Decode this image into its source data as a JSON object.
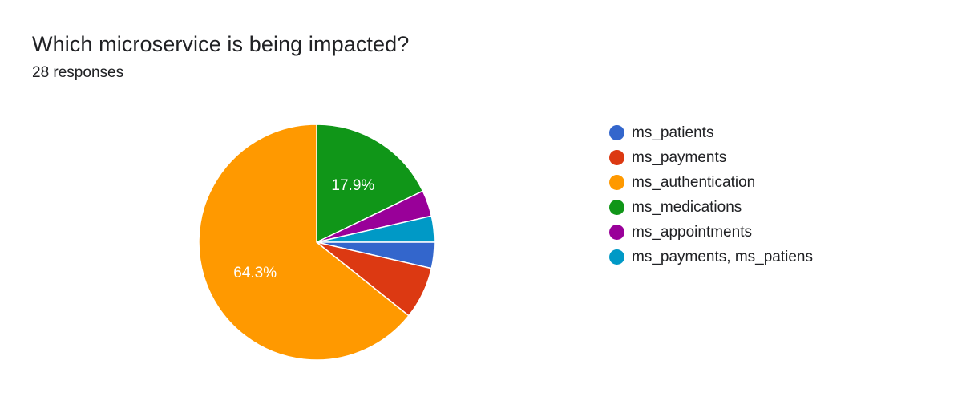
{
  "chart_data": {
    "type": "pie",
    "title": "Which microservice is being impacted?",
    "subtitle": "28 responses",
    "legend_position": "right",
    "slices": [
      {
        "label": "ms_patients",
        "value": 1,
        "percent_label": "",
        "color": "#3366cc"
      },
      {
        "label": "ms_payments",
        "value": 2,
        "percent_label": "",
        "color": "#dc3912"
      },
      {
        "label": "ms_authentication",
        "value": 18,
        "percent_label": "64.3%",
        "color": "#ff9900"
      },
      {
        "label": "ms_medications",
        "value": 5,
        "percent_label": "17.9%",
        "color": "#109618"
      },
      {
        "label": "ms_appointments",
        "value": 1,
        "percent_label": "",
        "color": "#990099"
      },
      {
        "label": "ms_payments, ms_patiens",
        "value": 1,
        "percent_label": "",
        "color": "#0099c6"
      }
    ]
  }
}
